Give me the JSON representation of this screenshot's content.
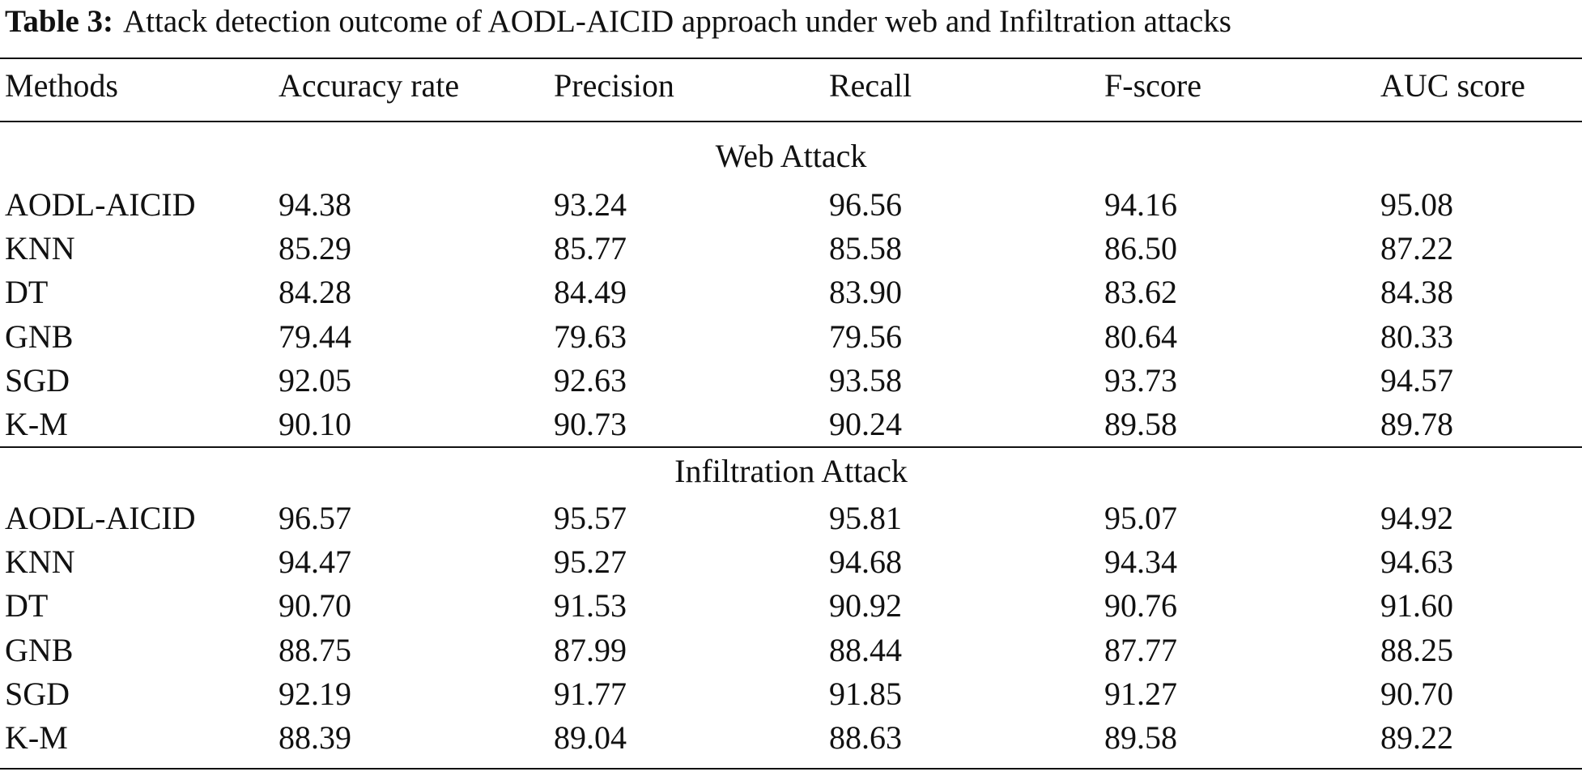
{
  "caption": {
    "label": "Table 3:",
    "text": "Attack detection outcome of AODL-AICID approach under web and Infiltration attacks"
  },
  "table": {
    "header": [
      "Methods",
      "Accuracy rate",
      "Precision",
      "Recall",
      "F-score",
      "AUC score"
    ],
    "sections": [
      {
        "title": "Web Attack",
        "rows": [
          [
            "AODL-AICID",
            "94.38",
            "93.24",
            "96.56",
            "94.16",
            "95.08"
          ],
          [
            "KNN",
            "85.29",
            "85.77",
            "85.58",
            "86.50",
            "87.22"
          ],
          [
            "DT",
            "84.28",
            "84.49",
            "83.90",
            "83.62",
            "84.38"
          ],
          [
            "GNB",
            "79.44",
            "79.63",
            "79.56",
            "80.64",
            "80.33"
          ],
          [
            "SGD",
            "92.05",
            "92.63",
            "93.58",
            "93.73",
            "94.57"
          ],
          [
            "K-M",
            "90.10",
            "90.73",
            "90.24",
            "89.58",
            "89.78"
          ]
        ]
      },
      {
        "title": "Infiltration Attack",
        "rows": [
          [
            "AODL-AICID",
            "96.57",
            "95.57",
            "95.81",
            "95.07",
            "94.92"
          ],
          [
            "KNN",
            "94.47",
            "95.27",
            "94.68",
            "94.34",
            "94.63"
          ],
          [
            "DT",
            "90.70",
            "91.53",
            "90.92",
            "90.76",
            "91.60"
          ],
          [
            "GNB",
            "88.75",
            "87.99",
            "88.44",
            "87.77",
            "88.25"
          ],
          [
            "SGD",
            "92.19",
            "91.77",
            "91.85",
            "91.27",
            "90.70"
          ],
          [
            "K-M",
            "88.39",
            "89.04",
            "88.63",
            "89.58",
            "89.22"
          ]
        ]
      }
    ]
  }
}
